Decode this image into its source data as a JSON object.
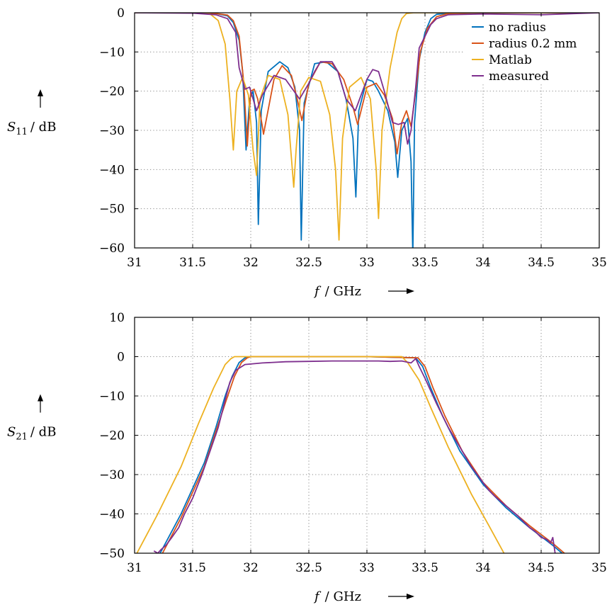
{
  "chart_data": [
    {
      "type": "line",
      "title": "",
      "ylabel": {
        "symbol": "S",
        "subscript": "11",
        "unit": "/ dB"
      },
      "xlabel": {
        "symbol": "f",
        "unit": "/ GHz"
      },
      "xlim": [
        31,
        35
      ],
      "ylim": [
        -60,
        0
      ],
      "xticks": [
        "31",
        "31.5",
        "32",
        "32.5",
        "33",
        "33.5",
        "34",
        "34.5",
        "35"
      ],
      "yticks": [
        "0",
        "−10",
        "−20",
        "−30",
        "−40",
        "−50",
        "−60"
      ],
      "grid": true,
      "legend_position": "top-right",
      "series": [
        {
          "name": "no radius",
          "color": "#0072bd",
          "x": [
            31.0,
            31.5,
            31.7,
            31.8,
            31.85,
            31.9,
            31.93,
            31.96,
            31.99,
            32.02,
            32.05,
            32.065,
            32.09,
            32.15,
            32.25,
            32.32,
            32.38,
            32.42,
            32.435,
            32.46,
            32.55,
            32.65,
            32.75,
            32.82,
            32.88,
            32.905,
            32.93,
            33.0,
            33.05,
            33.1,
            33.18,
            33.24,
            33.265,
            33.3,
            33.35,
            33.38,
            33.395,
            33.41,
            33.45,
            33.5,
            33.55,
            33.6,
            33.7,
            34.0,
            35.0
          ],
          "y": [
            0,
            0,
            -0.2,
            -0.8,
            -2.5,
            -7,
            -15,
            -35,
            -22,
            -20,
            -28,
            -54,
            -25,
            -15,
            -12.5,
            -14,
            -19,
            -30,
            -58,
            -23,
            -13,
            -12.5,
            -15,
            -22,
            -32,
            -47,
            -25,
            -17,
            -17.5,
            -20,
            -25,
            -33,
            -42,
            -30,
            -27,
            -38,
            -62,
            -28,
            -12,
            -5,
            -1.5,
            -0.4,
            -0.1,
            0,
            0
          ]
        },
        {
          "name": "radius 0.2 mm",
          "color": "#d95319",
          "x": [
            31.0,
            31.5,
            31.7,
            31.8,
            31.85,
            31.9,
            31.94,
            31.97,
            32.0,
            32.03,
            32.06,
            32.1,
            32.11,
            32.2,
            32.27,
            32.35,
            32.4,
            32.44,
            32.5,
            32.6,
            32.7,
            32.8,
            32.88,
            32.92,
            33.0,
            33.08,
            33.15,
            33.22,
            33.26,
            33.3,
            33.34,
            33.38,
            33.42,
            33.46,
            33.52,
            33.6,
            33.7,
            34.0,
            35.0
          ],
          "y": [
            0,
            0,
            -0.2,
            -0.6,
            -2,
            -6,
            -18,
            -34,
            -20,
            -19.5,
            -22,
            -29,
            -31,
            -17,
            -13.5,
            -16,
            -22,
            -27.5,
            -18,
            -12.5,
            -13,
            -17,
            -24,
            -28.5,
            -19,
            -18,
            -21,
            -27,
            -36,
            -28,
            -25,
            -29,
            -20,
            -10,
            -4,
            -1,
            -0.2,
            0,
            0
          ]
        },
        {
          "name": "Matlab",
          "color": "#edb120",
          "x": [
            31.0,
            31.5,
            31.65,
            31.72,
            31.78,
            31.82,
            31.85,
            31.88,
            31.93,
            31.98,
            32.02,
            32.05,
            32.08,
            32.15,
            32.25,
            32.32,
            32.37,
            32.39,
            32.43,
            32.5,
            32.6,
            32.68,
            32.73,
            32.76,
            32.79,
            32.85,
            32.95,
            33.03,
            33.08,
            33.1,
            33.13,
            33.2,
            33.26,
            33.3,
            33.34,
            33.4,
            33.5,
            35.0
          ],
          "y": [
            0,
            0,
            -0.3,
            -2,
            -8,
            -22,
            -35,
            -20,
            -16.5,
            -21,
            -35,
            -41.5,
            -22,
            -16,
            -17,
            -26,
            -44.5,
            -35,
            -20,
            -16.5,
            -17.5,
            -26,
            -40,
            -58,
            -32,
            -19,
            -16.5,
            -22,
            -40,
            -52.5,
            -30,
            -14,
            -5,
            -1.5,
            -0.2,
            0,
            0,
            0
          ]
        },
        {
          "name": "measured",
          "color": "#7e2f8e",
          "x": [
            31.0,
            31.5,
            31.7,
            31.8,
            31.87,
            31.9,
            31.95,
            31.99,
            32.02,
            32.05,
            32.1,
            32.2,
            32.3,
            32.42,
            32.5,
            32.55,
            32.6,
            32.7,
            32.75,
            32.82,
            32.9,
            32.95,
            33.0,
            33.05,
            33.1,
            33.15,
            33.22,
            33.27,
            33.32,
            33.35,
            33.38,
            33.42,
            33.45,
            33.5,
            33.55,
            33.6,
            33.7,
            34.0,
            34.5,
            35.0
          ],
          "y": [
            0,
            -0.1,
            -0.5,
            -1.5,
            -5,
            -14,
            -19.5,
            -19,
            -22,
            -25,
            -21,
            -16,
            -17,
            -22,
            -18,
            -15,
            -12.5,
            -12.5,
            -15,
            -22,
            -25,
            -21,
            -17,
            -14.5,
            -15,
            -20,
            -28,
            -28.5,
            -28,
            -33.5,
            -30,
            -19,
            -9,
            -6,
            -3,
            -1.5,
            -0.5,
            -0.3,
            -0.5,
            0
          ]
        }
      ]
    },
    {
      "type": "line",
      "title": "",
      "ylabel": {
        "symbol": "S",
        "subscript": "21",
        "unit": "/ dB"
      },
      "xlabel": {
        "symbol": "f",
        "unit": "/ GHz"
      },
      "xlim": [
        31,
        35
      ],
      "ylim": [
        -50,
        10
      ],
      "xticks": [
        "31",
        "31.5",
        "32",
        "32.5",
        "33",
        "33.5",
        "34",
        "34.5",
        "35"
      ],
      "yticks": [
        "10",
        "0",
        "−10",
        "−20",
        "−30",
        "−40",
        "−50"
      ],
      "grid": true,
      "series": [
        {
          "name": "no radius",
          "color": "#0072bd",
          "x": [
            31.22,
            31.4,
            31.6,
            31.7,
            31.78,
            31.84,
            31.9,
            31.95,
            32.0,
            33.0,
            33.42,
            33.48,
            33.55,
            33.65,
            33.8,
            34.0,
            34.2,
            34.4,
            34.6,
            34.7
          ],
          "y": [
            -50,
            -40,
            -27,
            -18,
            -10,
            -5,
            -1.5,
            -0.3,
            0,
            0,
            -0.3,
            -2.5,
            -8,
            -15,
            -24,
            -32.5,
            -38.5,
            -43.5,
            -48,
            -50.5
          ]
        },
        {
          "name": "radius 0.2 mm",
          "color": "#d95319",
          "x": [
            31.24,
            31.4,
            31.6,
            31.7,
            31.79,
            31.86,
            31.92,
            31.97,
            32.0,
            33.0,
            33.44,
            33.5,
            33.57,
            33.67,
            33.82,
            34.0,
            34.2,
            34.4,
            34.6,
            34.72
          ],
          "y": [
            -50,
            -41,
            -28,
            -19,
            -11,
            -5,
            -1.5,
            -0.3,
            0,
            0,
            -0.3,
            -2.5,
            -8,
            -15,
            -24,
            -32,
            -38,
            -43,
            -47.5,
            -50.5
          ]
        },
        {
          "name": "Matlab",
          "color": "#edb120",
          "x": [
            31.02,
            31.2,
            31.4,
            31.55,
            31.68,
            31.78,
            31.83,
            31.86,
            31.9,
            33.3,
            33.35,
            33.45,
            33.55,
            33.7,
            33.9,
            34.05,
            34.18
          ],
          "y": [
            -50,
            -40,
            -28,
            -17,
            -8,
            -2,
            -0.5,
            0,
            0,
            0,
            -1.5,
            -6,
            -13,
            -23,
            -35,
            -43,
            -50
          ]
        },
        {
          "name": "measured",
          "color": "#7e2f8e",
          "x": [
            31.17,
            31.2,
            31.23,
            31.27,
            31.32,
            31.38,
            31.43,
            31.5,
            31.58,
            31.65,
            31.72,
            31.78,
            31.82,
            31.87,
            31.95,
            32.1,
            32.3,
            32.5,
            32.7,
            32.9,
            33.1,
            33.2,
            33.3,
            33.38,
            33.42,
            33.45,
            33.5,
            33.6,
            33.7,
            33.8,
            33.9,
            34.0,
            34.05,
            34.1,
            34.2,
            34.3,
            34.35,
            34.4,
            34.45,
            34.5,
            34.55,
            34.58,
            34.6,
            34.62
          ],
          "y": [
            -49.5,
            -50,
            -49,
            -48,
            -46,
            -43.5,
            -40,
            -36,
            -30,
            -24,
            -18,
            -11,
            -6.5,
            -3.5,
            -2,
            -1.6,
            -1.3,
            -1.2,
            -1.1,
            -1.1,
            -1.1,
            -1.2,
            -1.1,
            -1.6,
            -0.5,
            -2.5,
            -5.5,
            -12,
            -18,
            -23,
            -28,
            -32,
            -34,
            -35.5,
            -38,
            -40.5,
            -42,
            -43.5,
            -44.5,
            -46,
            -46.5,
            -47.5,
            -46,
            -50
          ]
        }
      ]
    }
  ]
}
